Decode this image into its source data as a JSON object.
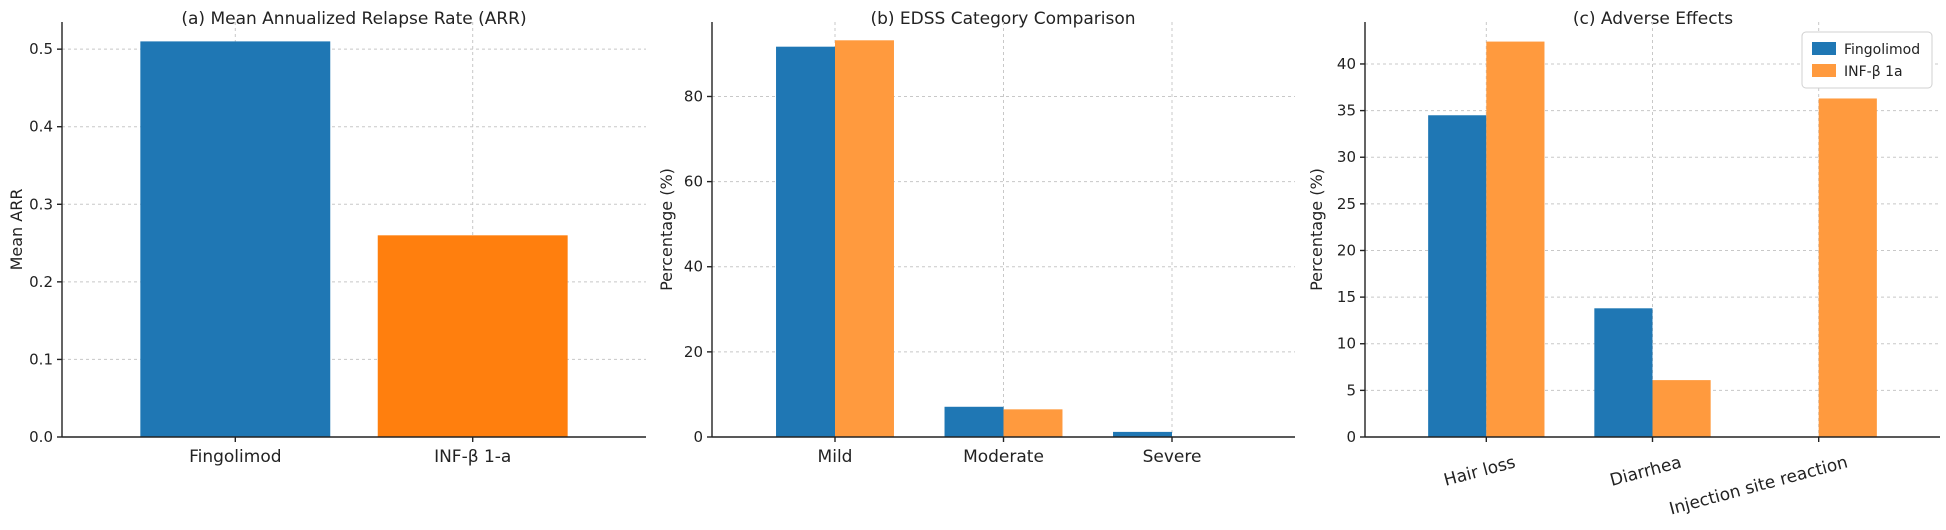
{
  "chart_data": [
    {
      "type": "bar",
      "title": "(a) Mean Annualized Relapse Rate (ARR)",
      "xlabel": "",
      "ylabel": "Mean ARR",
      "ylim": [
        0,
        0.535
      ],
      "yticks": [
        0.0,
        0.1,
        0.2,
        0.3,
        0.4,
        0.5
      ],
      "ytick_labels": [
        "0.0",
        "0.1",
        "0.2",
        "0.3",
        "0.4",
        "0.5"
      ],
      "grid": true,
      "categories": [
        "Fingolimod",
        "INF-β 1-a"
      ],
      "values": [
        0.51,
        0.26
      ],
      "colors": [
        "#1f77b4",
        "#ff7f0e"
      ]
    },
    {
      "type": "bar",
      "title": "(b) EDSS Category Comparison",
      "xlabel": "",
      "ylabel": "Percentage (%)",
      "ylim": [
        0,
        97.5
      ],
      "yticks": [
        0,
        20,
        40,
        60,
        80
      ],
      "ytick_labels": [
        "0",
        "20",
        "40",
        "60",
        "80"
      ],
      "grid": true,
      "categories": [
        "Mild",
        "Moderate",
        "Severe"
      ],
      "series": [
        {
          "values": [
            91.7,
            7.1,
            1.2
          ],
          "color": "#1f77b4"
        },
        {
          "values": [
            93.2,
            6.5,
            0
          ],
          "color": "#ff9a3e"
        }
      ]
    },
    {
      "type": "bar",
      "title": "(c) Adverse Effects",
      "xlabel": "",
      "ylabel": "Percentage (%)",
      "ylim": [
        0,
        44.5
      ],
      "yticks": [
        0,
        5,
        10,
        15,
        20,
        25,
        30,
        35,
        40
      ],
      "ytick_labels": [
        "0",
        "5",
        "10",
        "15",
        "20",
        "25",
        "30",
        "35",
        "40"
      ],
      "grid": true,
      "categories": [
        "Hair loss",
        "Diarrhea",
        "Injection site reaction"
      ],
      "xtick_rotation": 15,
      "legend": "top-right",
      "series": [
        {
          "name": "Fingolimod",
          "values": [
            34.5,
            13.8,
            0
          ],
          "color": "#1f77b4"
        },
        {
          "name": "INF-β 1a",
          "values": [
            42.4,
            6.1,
            36.3
          ],
          "color": "#ff9a3e"
        }
      ]
    }
  ]
}
